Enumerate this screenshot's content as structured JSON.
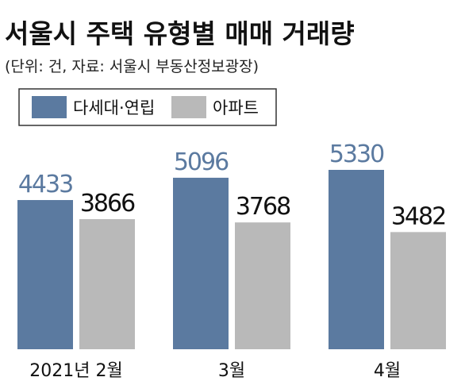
{
  "chart_data": {
    "type": "bar",
    "title": "서울시 주택 유형별 매매 거래량",
    "subtitle": "(단위: 건, 자료: 서울시 부동산정보광장)",
    "categories": [
      "2021년 2월",
      "3월",
      "4월"
    ],
    "series": [
      {
        "name": "다세대·연립",
        "color": "#5b7aa0",
        "values": [
          4433,
          5096,
          5330
        ]
      },
      {
        "name": "아파트",
        "color": "#b9b9b9",
        "values": [
          3866,
          3768,
          3482
        ]
      }
    ]
  }
}
